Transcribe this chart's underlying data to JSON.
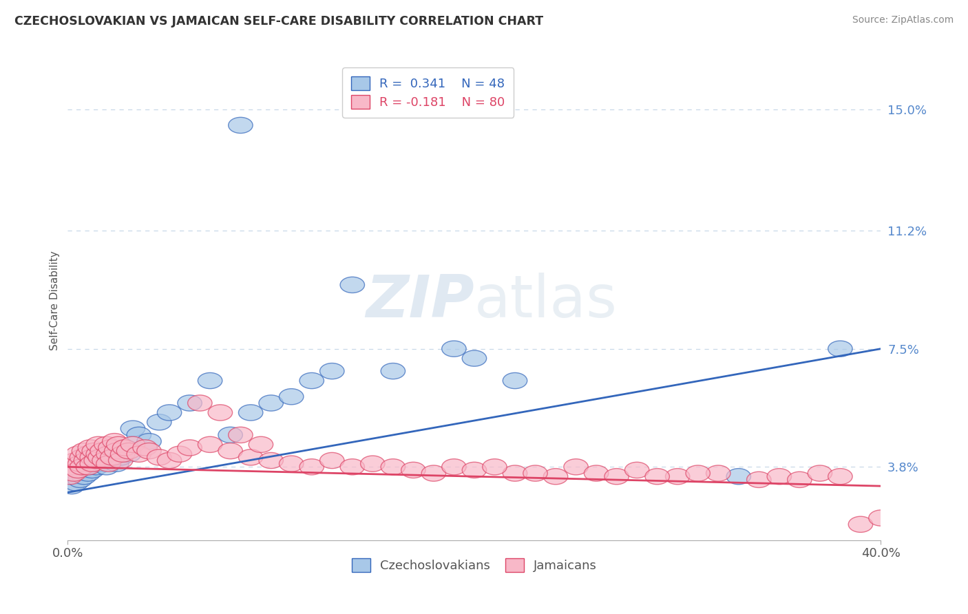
{
  "title": "CZECHOSLOVAKIAN VS JAMAICAN SELF-CARE DISABILITY CORRELATION CHART",
  "source": "Source: ZipAtlas.com",
  "ylabel": "Self-Care Disability",
  "xlim": [
    0.0,
    40.0
  ],
  "ylim": [
    1.5,
    16.5
  ],
  "yticks": [
    3.8,
    7.5,
    11.2,
    15.0
  ],
  "grid_color": "#c8d8e8",
  "background_color": "#ffffff",
  "watermark_text": "ZIPatlas",
  "legend_r1": "R =  0.341",
  "legend_n1": "N = 48",
  "legend_r2": "R = -0.181",
  "legend_n2": "N = 80",
  "color_czech": "#a8c8e8",
  "color_jamaica": "#f8b8c8",
  "line_color_czech": "#3366bb",
  "line_color_jamaica": "#dd4466",
  "czech_x": [
    0.2,
    0.3,
    0.4,
    0.5,
    0.6,
    0.7,
    0.8,
    0.9,
    1.0,
    1.1,
    1.2,
    1.3,
    1.4,
    1.5,
    1.6,
    1.7,
    1.8,
    1.9,
    2.0,
    2.1,
    2.2,
    2.3,
    2.4,
    2.5,
    2.6,
    2.8,
    3.0,
    3.2,
    3.5,
    4.0,
    4.5,
    5.0,
    6.0,
    7.0,
    8.0,
    9.0,
    10.0,
    11.0,
    12.0,
    13.0,
    14.0,
    16.0,
    19.0,
    20.0,
    22.0,
    33.0,
    8.5,
    38.0
  ],
  "czech_y": [
    3.2,
    3.5,
    3.3,
    3.6,
    3.4,
    3.7,
    3.5,
    3.8,
    3.6,
    3.9,
    3.7,
    4.0,
    3.8,
    3.9,
    4.1,
    4.0,
    4.2,
    3.8,
    4.3,
    4.0,
    4.1,
    4.2,
    3.9,
    4.3,
    4.1,
    4.4,
    4.2,
    5.0,
    4.8,
    4.6,
    5.2,
    5.5,
    5.8,
    6.5,
    4.8,
    5.5,
    5.8,
    6.0,
    6.5,
    6.8,
    9.5,
    6.8,
    7.5,
    7.2,
    6.5,
    3.5,
    14.5,
    7.5
  ],
  "jamaica_x": [
    0.1,
    0.2,
    0.3,
    0.4,
    0.5,
    0.5,
    0.6,
    0.7,
    0.7,
    0.8,
    0.9,
    1.0,
    1.0,
    1.1,
    1.2,
    1.2,
    1.3,
    1.4,
    1.5,
    1.5,
    1.6,
    1.7,
    1.8,
    1.9,
    2.0,
    2.0,
    2.1,
    2.2,
    2.3,
    2.4,
    2.5,
    2.6,
    2.7,
    2.8,
    3.0,
    3.2,
    3.5,
    3.8,
    4.0,
    4.5,
    5.0,
    5.5,
    6.0,
    7.0,
    8.0,
    9.0,
    10.0,
    11.0,
    12.0,
    13.0,
    14.0,
    15.0,
    16.0,
    17.0,
    18.0,
    19.0,
    20.0,
    22.0,
    24.0,
    25.0,
    26.0,
    27.0,
    28.0,
    30.0,
    32.0,
    34.0,
    35.0,
    36.0,
    37.0,
    38.0,
    39.0,
    40.0,
    6.5,
    7.5,
    8.5,
    9.5,
    21.0,
    23.0,
    29.0,
    31.0
  ],
  "jamaica_y": [
    3.5,
    3.8,
    3.6,
    4.0,
    3.7,
    4.2,
    3.9,
    4.1,
    3.8,
    4.3,
    4.0,
    4.2,
    3.8,
    4.4,
    4.1,
    3.9,
    4.3,
    4.0,
    4.2,
    4.5,
    4.1,
    4.3,
    4.0,
    4.5,
    4.2,
    3.9,
    4.4,
    4.1,
    4.6,
    4.3,
    4.5,
    4.0,
    4.2,
    4.4,
    4.3,
    4.5,
    4.2,
    4.4,
    4.3,
    4.1,
    4.0,
    4.2,
    4.4,
    4.5,
    4.3,
    4.1,
    4.0,
    3.9,
    3.8,
    4.0,
    3.8,
    3.9,
    3.8,
    3.7,
    3.6,
    3.8,
    3.7,
    3.6,
    3.5,
    3.8,
    3.6,
    3.5,
    3.7,
    3.5,
    3.6,
    3.4,
    3.5,
    3.4,
    3.6,
    3.5,
    2.0,
    2.2,
    5.8,
    5.5,
    4.8,
    4.5,
    3.8,
    3.6,
    3.5,
    3.6
  ],
  "czech_trend_x": [
    0.0,
    40.0
  ],
  "czech_trend_y": [
    3.0,
    7.5
  ],
  "jamaica_trend_x": [
    0.0,
    40.0
  ],
  "jamaica_trend_y": [
    3.8,
    3.2
  ]
}
